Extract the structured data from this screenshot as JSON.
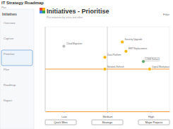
{
  "header": {
    "title": "IT Strategy Roadmap",
    "subtitle": "Plan"
  },
  "sidebar": {
    "title": "Initiatives",
    "items": [
      "Overview",
      "Capture",
      "Prioritise",
      "Plan",
      "Roadmap",
      "Report"
    ],
    "selected": 2
  },
  "page": {
    "title": "Initiatives - Prioritise",
    "subtitle": "Plot initiatives by value and effort",
    "filter": "Filter"
  },
  "chart_data": {
    "type": "scatter",
    "x": [
      1.5,
      4.8,
      6.2,
      6.5,
      7.9,
      4.8,
      8.4
    ],
    "series": [
      {
        "name": "Initiatives",
        "values": [
          7.7,
          6.4,
          8.2,
          7.1,
          5.9,
          5.0,
          5.0
        ]
      }
    ],
    "labels": [
      "Cloud Migration",
      "Data Platform",
      "Security Upgrade",
      "ERP Replacement",
      "CRM Rollout",
      "Network Refresh",
      "Digital Workplace"
    ],
    "colors": [
      "#bdbdbd",
      "#f4b400",
      "#f4b400",
      "#f4b400",
      "#5aa469",
      "#f4b400",
      "#f4b400"
    ],
    "xlim": [
      0,
      10
    ],
    "ylim": [
      0,
      10
    ],
    "xticks": [
      {
        "value": 1.5,
        "label": "Low"
      },
      {
        "value": 5,
        "label": "Medium"
      },
      {
        "value": 8.5,
        "label": "High"
      }
    ],
    "quadrant": {
      "x": 5,
      "y": 5
    },
    "tick_labels": "x",
    "buttons": [
      "Quick Wins",
      "Strategic",
      "Major Projects"
    ]
  }
}
